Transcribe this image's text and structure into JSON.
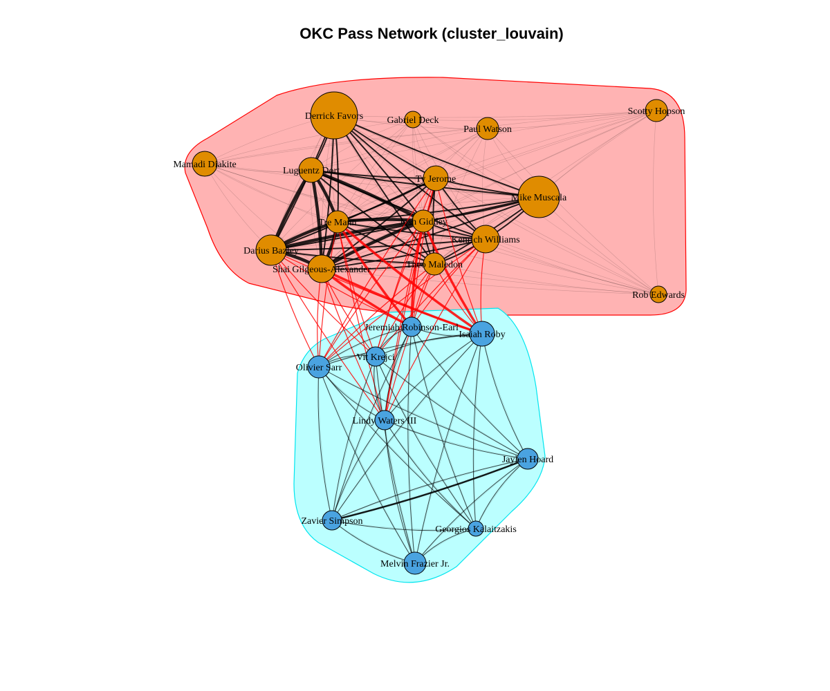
{
  "title": "OKC Pass Network (cluster_louvain)",
  "colors": {
    "group1_fill": "#ffb3b3",
    "group1_border": "#ff0000",
    "group1_node": "#e08c00",
    "group2_fill": "#bbffff",
    "group2_border": "#00e5ee",
    "group2_node": "#4aa3e0",
    "edge_within": "#000000",
    "edge_between": "#ff0000"
  },
  "groups": [
    {
      "id": "cluster-1",
      "members": [
        "Derrick Favors",
        "Gabriel Deck",
        "Paul Watson",
        "Scotty Hopson",
        "Mamadi Diakite",
        "Luguentz Dort",
        "Ty Jerome",
        "Mike Muscala",
        "Tre Mann",
        "Josh Giddey",
        "Kenrich Williams",
        "Darius Bazley",
        "Shai Gilgeous-Alexander",
        "Theo Maledon",
        "Rob Edwards"
      ]
    },
    {
      "id": "cluster-2",
      "members": [
        "Jeremiah Robinson-Earl",
        "Isaiah Roby",
        "Vit Krejci",
        "Olivier Sarr",
        "Lindy Waters III",
        "Jaylen Hoard",
        "Zavier Simpson",
        "Georgios Kalaitzakis",
        "Melvin Frazier Jr."
      ]
    }
  ],
  "nodes": [
    {
      "id": "derrick-favors",
      "label": "Derrick Favors",
      "group": 1,
      "size": 34
    },
    {
      "id": "gabriel-deck",
      "label": "Gabriel Deck",
      "group": 1,
      "size": 12
    },
    {
      "id": "paul-watson",
      "label": "Paul Watson",
      "group": 1,
      "size": 16
    },
    {
      "id": "scotty-hopson",
      "label": "Scotty Hopson",
      "group": 1,
      "size": 16
    },
    {
      "id": "mamadi-diakite",
      "label": "Mamadi Diakite",
      "group": 1,
      "size": 18
    },
    {
      "id": "luguentz-dort",
      "label": "Luguentz Dort",
      "group": 1,
      "size": 18
    },
    {
      "id": "ty-jerome",
      "label": "Ty Jerome",
      "group": 1,
      "size": 18
    },
    {
      "id": "mike-muscala",
      "label": "Mike Muscala",
      "group": 1,
      "size": 30
    },
    {
      "id": "tre-mann",
      "label": "Tre Mann",
      "group": 1,
      "size": 16
    },
    {
      "id": "josh-giddey",
      "label": "Josh Giddey",
      "group": 1,
      "size": 16
    },
    {
      "id": "kenrich-williams",
      "label": "Kenrich Williams",
      "group": 1,
      "size": 20
    },
    {
      "id": "darius-bazley",
      "label": "Darius Bazley",
      "group": 1,
      "size": 22
    },
    {
      "id": "shai-gilgeous-alexander",
      "label": "Shai Gilgeous-Alexander",
      "group": 1,
      "size": 20
    },
    {
      "id": "theo-maledon",
      "label": "Theo Maledon",
      "group": 1,
      "size": 16
    },
    {
      "id": "rob-edwards",
      "label": "Rob Edwards",
      "group": 1,
      "size": 12
    },
    {
      "id": "jeremiah-robinson-earl",
      "label": "Jeremiah Robinson-Earl",
      "group": 2,
      "size": 14
    },
    {
      "id": "isaiah-roby",
      "label": "Isaiah Roby",
      "group": 2,
      "size": 18
    },
    {
      "id": "vit-krejci",
      "label": "Vit Krejci",
      "group": 2,
      "size": 14
    },
    {
      "id": "olivier-sarr",
      "label": "Olivier Sarr",
      "group": 2,
      "size": 16
    },
    {
      "id": "lindy-waters-iii",
      "label": "Lindy Waters III",
      "group": 2,
      "size": 14
    },
    {
      "id": "jaylen-hoard",
      "label": "Jaylen Hoard",
      "group": 2,
      "size": 15
    },
    {
      "id": "zavier-simpson",
      "label": "Zavier Simpson",
      "group": 2,
      "size": 14
    },
    {
      "id": "georgios-kalaitzakis",
      "label": "Georgios Kalaitzakis",
      "group": 2,
      "size": 11
    },
    {
      "id": "melvin-frazier-jr",
      "label": "Melvin Frazier Jr.",
      "group": 2,
      "size": 16
    }
  ]
}
